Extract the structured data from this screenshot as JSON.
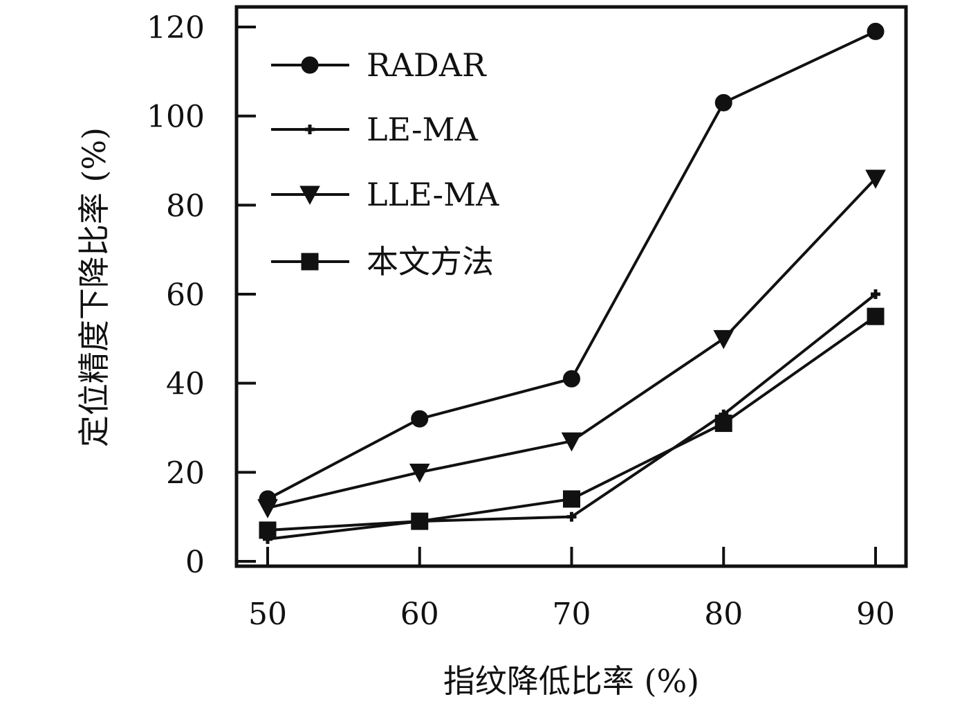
{
  "chart_data": {
    "type": "line",
    "x": [
      50,
      60,
      70,
      80,
      90
    ],
    "xlabel": "指纹降低比率 (%)",
    "ylabel": "定位精度下降比率 (%)",
    "xlim": [
      48,
      92
    ],
    "ylim": [
      0,
      121
    ],
    "xticks": [
      50,
      60,
      70,
      80,
      90
    ],
    "yticks": [
      0,
      20,
      40,
      60,
      80,
      100,
      120
    ],
    "grid": false,
    "legend_position": "top-left",
    "series": [
      {
        "name": "RADAR",
        "marker": "circle",
        "values": [
          14,
          32,
          41,
          103,
          119
        ]
      },
      {
        "name": "LE-MA",
        "marker": "plus",
        "values": [
          5,
          9,
          10,
          33,
          60
        ]
      },
      {
        "name": "LLE-MA",
        "marker": "triangle-down",
        "values": [
          12,
          20,
          27,
          50,
          86
        ]
      },
      {
        "name": "本文方法",
        "marker": "square",
        "values": [
          7,
          9,
          14,
          31,
          55
        ]
      }
    ]
  }
}
